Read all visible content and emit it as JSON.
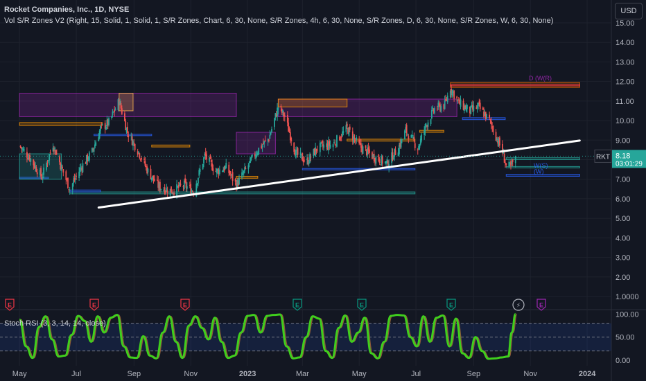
{
  "header": {
    "title": "Rocket Companies, Inc., 1D, NYSE",
    "indicator": "Vol S/R Zones V2 (Right, 15, Solid, 1, Solid, 1, S/R Zones, Chart, 6, 30, None, S/R Zones, 4h, 6, 30, None, S/R Zones, D, 6, 30, None, S/R Zones, W, 6, 30, None)",
    "currency_button": "USD"
  },
  "price_badge": {
    "symbol": "RKT",
    "price": "8.18",
    "countdown": "03:01:29"
  },
  "zone_labels": [
    "D (W(R)",
    "W(S)",
    "(W)"
  ],
  "event_markers": [
    "E",
    "E",
    "E",
    "E",
    "E",
    "E",
    "⚡",
    "E"
  ],
  "stoch_label": "Stoch RSI (3, 3, 14, 14, close)",
  "colors": {
    "up": "#26a69a",
    "down": "#ef5350",
    "trendline": "#ffffff",
    "stoch": "#3fcf1d",
    "earnings": "#f23645",
    "earnings_future": "#089981"
  },
  "chart_data": [
    {
      "type": "candlestick",
      "symbol": "RKT",
      "interval": "1D",
      "x_ticks": [
        "May",
        "Jul",
        "Sep",
        "Nov",
        "2023",
        "Mar",
        "May",
        "Jul",
        "Sep",
        "Nov",
        "2024"
      ],
      "y_ticks": [
        "15.00",
        "14.00",
        "13.00",
        "12.00",
        "11.00",
        "10.00",
        "9.00",
        "8.00",
        "7.00",
        "6.00",
        "5.00",
        "4.00",
        "3.00",
        "2.00",
        "1.0000"
      ],
      "ylim": [
        0.8,
        15.3
      ],
      "close_path": [
        [
          "2022-05-01",
          8.7
        ],
        [
          "2022-05-12",
          8.1
        ],
        [
          "2022-05-25",
          7.1
        ],
        [
          "2022-06-06",
          8.8
        ],
        [
          "2022-06-15",
          7.6
        ],
        [
          "2022-06-24",
          6.5
        ],
        [
          "2022-07-06",
          7.6
        ],
        [
          "2022-07-18",
          8.4
        ],
        [
          "2022-07-27",
          9.6
        ],
        [
          "2022-08-05",
          9.9
        ],
        [
          "2022-08-16",
          11.0
        ],
        [
          "2022-08-25",
          9.4
        ],
        [
          "2022-09-06",
          8.4
        ],
        [
          "2022-09-16",
          7.4
        ],
        [
          "2022-09-28",
          6.6
        ],
        [
          "2022-10-12",
          6.4
        ],
        [
          "2022-10-25",
          6.7
        ],
        [
          "2022-11-04",
          6.4
        ],
        [
          "2022-11-16",
          8.2
        ],
        [
          "2022-11-28",
          7.4
        ],
        [
          "2022-12-09",
          7.6
        ],
        [
          "2022-12-20",
          6.7
        ],
        [
          "2023-01-03",
          7.8
        ],
        [
          "2023-01-12",
          8.5
        ],
        [
          "2023-01-24",
          9.1
        ],
        [
          "2023-02-03",
          10.7
        ],
        [
          "2023-02-10",
          10.2
        ],
        [
          "2023-02-22",
          8.3
        ],
        [
          "2023-03-06",
          7.9
        ],
        [
          "2023-03-17",
          8.6
        ],
        [
          "2023-04-03",
          8.8
        ],
        [
          "2023-04-18",
          9.6
        ],
        [
          "2023-05-01",
          8.7
        ],
        [
          "2023-05-15",
          8.2
        ],
        [
          "2023-05-31",
          7.8
        ],
        [
          "2023-06-12",
          8.6
        ],
        [
          "2023-06-20",
          9.5
        ],
        [
          "2023-07-03",
          8.6
        ],
        [
          "2023-07-12",
          9.8
        ],
        [
          "2023-07-21",
          10.6
        ],
        [
          "2023-08-01",
          10.8
        ],
        [
          "2023-08-07",
          11.7
        ],
        [
          "2023-08-16",
          10.9
        ],
        [
          "2023-08-28",
          10.5
        ],
        [
          "2023-09-06",
          10.7
        ],
        [
          "2023-09-18",
          10.0
        ],
        [
          "2023-10-02",
          8.4
        ],
        [
          "2023-10-06",
          7.7
        ],
        [
          "2023-10-11",
          7.6
        ],
        [
          "2023-10-16",
          8.18
        ]
      ],
      "last": 8.18,
      "trendline": [
        [
          "2022-07-25",
          5.55
        ],
        [
          "2023-12-24",
          8.98
        ]
      ],
      "zones": [
        {
          "y": [
            11.7,
            11.95
          ],
          "from": "2023-08-07",
          "to": "2023-12-24",
          "color": "#ef6c00"
        },
        {
          "y": [
            11.8,
            11.85
          ],
          "from": "2023-08-07",
          "to": "2023-12-24",
          "color": "#f23645"
        },
        {
          "y": [
            10.2,
            11.4
          ],
          "from": "2022-05-01",
          "to": "2022-12-20",
          "color": "#9c27b0"
        },
        {
          "y": [
            10.5,
            11.4
          ],
          "from": "2022-08-16",
          "to": "2022-08-31",
          "color": "#ffb74d"
        },
        {
          "y": [
            10.2,
            11.1
          ],
          "from": "2023-02-03",
          "to": "2023-08-14",
          "color": "#9c27b0"
        },
        {
          "y": [
            10.7,
            11.1
          ],
          "from": "2023-02-03",
          "to": "2023-04-18",
          "color": "#ff9800"
        },
        {
          "y": [
            9.75,
            9.9
          ],
          "from": "2022-05-01",
          "to": "2022-07-29",
          "color": "#ff9800"
        },
        {
          "y": [
            9.25,
            9.3
          ],
          "from": "2022-07-20",
          "to": "2022-09-20",
          "color": "#2962ff"
        },
        {
          "y": [
            8.3,
            9.4
          ],
          "from": "2022-12-20",
          "to": "2023-01-31",
          "color": "#9c27b0"
        },
        {
          "y": [
            8.95,
            9.05
          ],
          "from": "2023-04-18",
          "to": "2023-06-30",
          "color": "#ff9800"
        },
        {
          "y": [
            8.65,
            8.75
          ],
          "from": "2022-09-20",
          "to": "2022-10-31",
          "color": "#ff9800"
        },
        {
          "y": [
            7.5,
            7.55
          ],
          "from": "2023-03-01",
          "to": "2023-06-30",
          "color": "#2962ff"
        },
        {
          "y": [
            7.05,
            7.1
          ],
          "from": "2022-05-01",
          "to": "2022-06-01",
          "color": "#2962ff"
        },
        {
          "y": [
            7.0,
            8.3
          ],
          "from": "2022-05-01",
          "to": "2022-06-15",
          "color": "#26a69a"
        },
        {
          "y": [
            6.25,
            6.35
          ],
          "from": "2022-06-25",
          "to": "2023-06-30",
          "color": "#26a69a"
        },
        {
          "y": [
            6.35,
            6.45
          ],
          "from": "2022-06-25",
          "to": "2022-07-27",
          "color": "#2962ff"
        },
        {
          "y": [
            7.05,
            7.15
          ],
          "from": "2022-12-20",
          "to": "2023-01-12",
          "color": "#ff9800"
        },
        {
          "y": [
            10.05,
            10.15
          ],
          "from": "2023-08-20",
          "to": "2023-10-05",
          "color": "#2962ff"
        },
        {
          "y": [
            9.4,
            9.5
          ],
          "from": "2023-07-05",
          "to": "2023-07-31",
          "color": "#ff9800"
        },
        {
          "y": [
            8.0,
            8.1
          ],
          "from": "2023-10-06",
          "to": "2023-12-24",
          "color": "#26a69a"
        },
        {
          "y": [
            7.15,
            7.25
          ],
          "from": "2023-10-06",
          "to": "2023-12-24",
          "color": "#2962ff"
        },
        {
          "y": [
            7.6,
            7.65
          ],
          "from": "2023-10-06",
          "to": "2023-12-24",
          "color": "#26a69a"
        }
      ]
    },
    {
      "type": "line",
      "name": "Stoch RSI (3, 3, 14, 14, close)",
      "y_ticks": [
        "100.00",
        "50.00",
        "0.00"
      ],
      "ylim": [
        -5,
        108
      ],
      "bands": [
        80,
        50,
        20
      ],
      "k_path": [
        [
          "2022-05-01",
          88
        ],
        [
          "2022-05-08",
          30
        ],
        [
          "2022-05-15",
          5
        ],
        [
          "2022-05-22",
          72
        ],
        [
          "2022-05-29",
          95
        ],
        [
          "2022-06-05",
          45
        ],
        [
          "2022-06-12",
          8
        ],
        [
          "2022-06-19",
          10
        ],
        [
          "2022-06-26",
          55
        ],
        [
          "2022-07-03",
          96
        ],
        [
          "2022-07-10",
          85
        ],
        [
          "2022-07-17",
          40
        ],
        [
          "2022-07-24",
          95
        ],
        [
          "2022-07-31",
          60
        ],
        [
          "2022-08-07",
          92
        ],
        [
          "2022-08-14",
          98
        ],
        [
          "2022-08-21",
          30
        ],
        [
          "2022-08-28",
          6
        ],
        [
          "2022-09-04",
          5
        ],
        [
          "2022-09-11",
          52
        ],
        [
          "2022-09-18",
          10
        ],
        [
          "2022-09-25",
          4
        ],
        [
          "2022-10-02",
          60
        ],
        [
          "2022-10-09",
          95
        ],
        [
          "2022-10-16",
          40
        ],
        [
          "2022-10-23",
          5
        ],
        [
          "2022-10-30",
          75
        ],
        [
          "2022-11-06",
          95
        ],
        [
          "2022-11-13",
          70
        ],
        [
          "2022-11-20",
          45
        ],
        [
          "2022-11-27",
          92
        ],
        [
          "2022-12-04",
          40
        ],
        [
          "2022-12-11",
          5
        ],
        [
          "2022-12-18",
          10
        ],
        [
          "2022-12-25",
          60
        ],
        [
          "2023-01-01",
          96
        ],
        [
          "2023-01-08",
          98
        ],
        [
          "2023-01-15",
          60
        ],
        [
          "2023-01-22",
          96
        ],
        [
          "2023-01-29",
          98
        ],
        [
          "2023-02-05",
          99
        ],
        [
          "2023-02-12",
          30
        ],
        [
          "2023-02-19",
          4
        ],
        [
          "2023-02-26",
          6
        ],
        [
          "2023-03-05",
          50
        ],
        [
          "2023-03-12",
          95
        ],
        [
          "2023-03-19",
          90
        ],
        [
          "2023-03-26",
          20
        ],
        [
          "2023-04-02",
          5
        ],
        [
          "2023-04-09",
          70
        ],
        [
          "2023-04-16",
          97
        ],
        [
          "2023-04-23",
          40
        ],
        [
          "2023-04-30",
          60
        ],
        [
          "2023-05-07",
          92
        ],
        [
          "2023-05-14",
          15
        ],
        [
          "2023-05-21",
          4
        ],
        [
          "2023-05-28",
          40
        ],
        [
          "2023-06-04",
          96
        ],
        [
          "2023-06-11",
          98
        ],
        [
          "2023-06-18",
          97
        ],
        [
          "2023-06-25",
          50
        ],
        [
          "2023-07-02",
          30
        ],
        [
          "2023-07-09",
          95
        ],
        [
          "2023-07-16",
          40
        ],
        [
          "2023-07-23",
          92
        ],
        [
          "2023-07-30",
          97
        ],
        [
          "2023-08-06",
          30
        ],
        [
          "2023-08-13",
          90
        ],
        [
          "2023-08-20",
          15
        ],
        [
          "2023-08-27",
          5
        ],
        [
          "2023-09-03",
          50
        ],
        [
          "2023-09-10",
          20
        ],
        [
          "2023-09-17",
          3
        ],
        [
          "2023-09-24",
          4
        ],
        [
          "2023-10-01",
          6
        ],
        [
          "2023-10-08",
          8
        ],
        [
          "2023-10-12",
          60
        ],
        [
          "2023-10-16",
          100
        ]
      ]
    }
  ]
}
